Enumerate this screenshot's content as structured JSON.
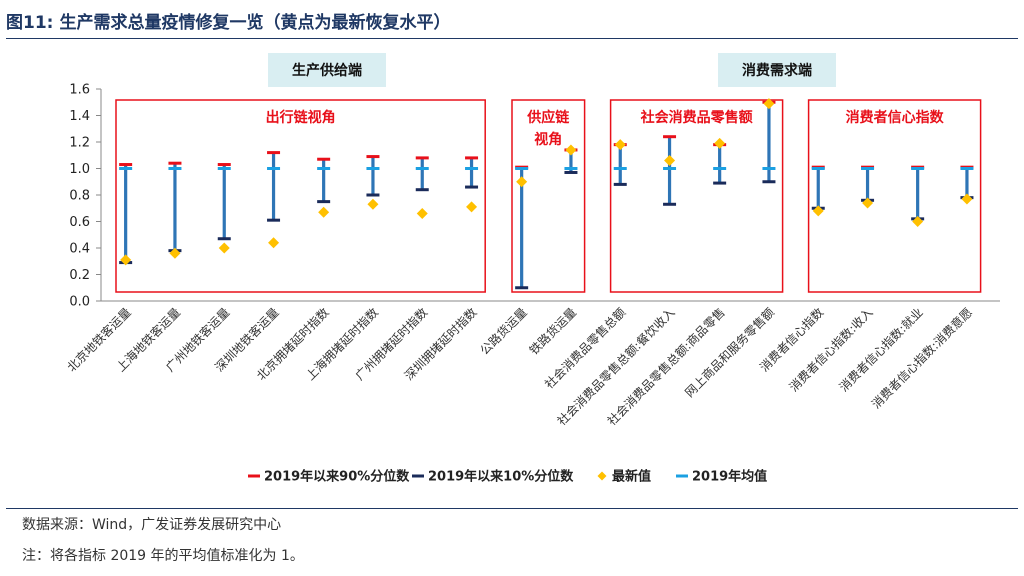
{
  "title": {
    "number": "图11:",
    "text": "生产需求总量疫情修复一览（黄点为最新恢复水平）"
  },
  "headers": {
    "supply": "生产供给端",
    "demand": "消费需求端"
  },
  "chart_data": {
    "type": "range",
    "ylim": [
      0,
      1.6
    ],
    "yticks": [
      "0.0",
      "0.2",
      "0.4",
      "0.6",
      "0.8",
      "1.0",
      "1.2",
      "1.4",
      "1.6"
    ],
    "categories": [
      "北京地铁客运量",
      "上海地铁客运量",
      "广州地铁客运量",
      "深圳地铁客运量",
      "北京拥堵延时指数",
      "上海拥堵延时指数",
      "广州拥堵延时指数",
      "深圳拥堵延时指数",
      "公路货运量",
      "铁路货运量",
      "社会消费品零售总额",
      "社会消费品零售总额:餐饮收入",
      "社会消费品零售总额:商品零售",
      "网上商品和服务零售额",
      "消费者信心指数",
      "消费者信心指数:收入",
      "消费者信心指数:就业",
      "消费者信心指数:消费意愿"
    ],
    "series": [
      {
        "name": "2019年以来90%分位数",
        "color": "#e8101a",
        "values": [
          1.03,
          1.04,
          1.03,
          1.12,
          1.07,
          1.09,
          1.08,
          1.08,
          1.01,
          1.14,
          1.18,
          1.24,
          1.18,
          1.5,
          1.01,
          1.01,
          1.01,
          1.01
        ]
      },
      {
        "name": "2019年以来10%分位数",
        "color": "#1a2b5a",
        "values": [
          0.29,
          0.38,
          0.47,
          0.61,
          0.75,
          0.8,
          0.84,
          0.86,
          0.1,
          0.97,
          0.88,
          0.73,
          0.89,
          0.9,
          0.7,
          0.76,
          0.62,
          0.78
        ]
      },
      {
        "name": "最新值",
        "color": "#ffc000",
        "values": [
          0.31,
          0.36,
          0.4,
          0.44,
          0.67,
          0.73,
          0.66,
          0.71,
          0.9,
          1.14,
          1.18,
          1.06,
          1.19,
          1.49,
          0.68,
          0.74,
          0.6,
          0.77
        ]
      },
      {
        "name": "2019年均值",
        "color": "#1ba0e2",
        "values": [
          1.0,
          1.0,
          1.0,
          1.0,
          1.0,
          1.0,
          1.0,
          1.0,
          1.0,
          1.0,
          1.0,
          1.0,
          1.0,
          1.0,
          1.0,
          1.0,
          1.0,
          1.0
        ]
      }
    ],
    "groups": [
      {
        "label": "出行链视角",
        "from": 0,
        "to": 7
      },
      {
        "label": "供应链",
        "label2": "视角",
        "from": 8,
        "to": 9
      },
      {
        "label": "社会消费品零售额",
        "from": 10,
        "to": 13
      },
      {
        "label": "消费者信心指数",
        "from": 14,
        "to": 17
      }
    ],
    "legend_position": "bottom"
  },
  "source": "数据来源：Wind，广发证券发展研究中心",
  "note": "注：将各指标 2019 年的平均值标准化为 1。"
}
